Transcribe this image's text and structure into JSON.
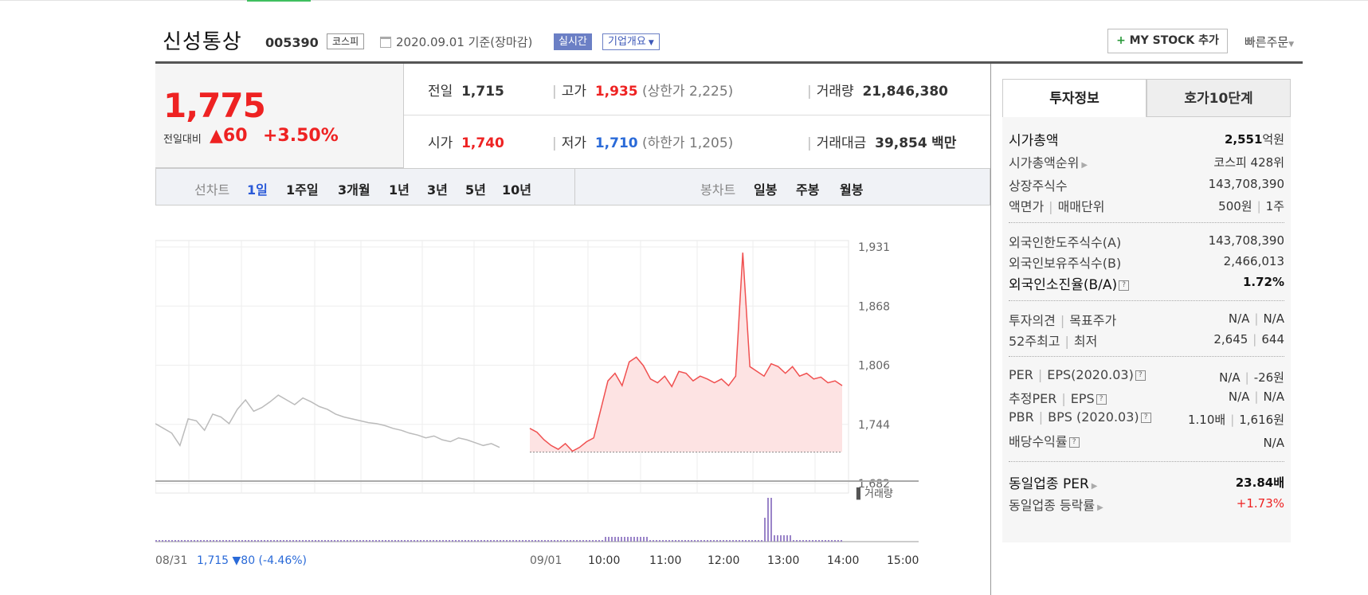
{
  "header": {
    "name": "신성통상",
    "code": "005390",
    "market_badge": "코스피",
    "date": "2020.09.01 기준(장마감)",
    "realtime": "실시간",
    "corp_overview": "기업개요",
    "mystock_plus": "+",
    "mystock_label": "MY STOCK 추가",
    "quick_order": "빠른주문"
  },
  "price": {
    "current": "1,775",
    "diff_label": "전일대비",
    "diff_value": "▲60",
    "diff_pct": "+3.50%"
  },
  "summary": {
    "prev_label": "전일",
    "prev": "1,715",
    "high_label": "고가",
    "high": "1,935",
    "upper_label": "(상한가 2,225)",
    "volume_label": "거래량",
    "volume": "21,846,380",
    "open_label": "시가",
    "open": "1,740",
    "low_label": "저가",
    "low": "1,710",
    "lower_label": "(하한가 1,205)",
    "amount_label": "거래대금",
    "amount": "39,854",
    "amount_unit": "백만"
  },
  "periods": {
    "line_label": "선차트",
    "items": [
      "1일",
      "1주일",
      "3개월",
      "1년",
      "3년",
      "5년",
      "10년"
    ],
    "candle_label": "봉차트",
    "candle_items": [
      "일봉",
      "주봉",
      "월봉"
    ]
  },
  "chart_data": {
    "type": "line",
    "title": "",
    "prev_close": 1715,
    "y_ticks": [
      "1,931",
      "1,868",
      "1,806",
      "1,744",
      "1,682"
    ],
    "ylim": [
      1682,
      1931
    ],
    "x_ticks": [
      "09/01",
      "10:00",
      "11:00",
      "12:00",
      "13:00",
      "14:00",
      "15:00"
    ],
    "prev_day_label": "08/31",
    "prev_day_info": "1,715 ▼80 (-4.46%)",
    "volume_legend": "거래량",
    "series": [
      {
        "values": [
          1745,
          1740,
          1735,
          1722,
          1750,
          1748,
          1738,
          1755,
          1752,
          1745,
          1760,
          1770,
          1758,
          1762,
          1768,
          1775,
          1770,
          1765,
          1772,
          1768,
          1763,
          1760,
          1755,
          1752,
          1750,
          1748,
          1746,
          1745,
          1743,
          1740,
          1738,
          1735,
          1733,
          1730,
          1732,
          1728,
          1726,
          1730,
          1728,
          1725,
          1722,
          1724,
          1720
        ]
      },
      {
        "values": [
          1740,
          1736,
          1728,
          1722,
          1718,
          1724,
          1716,
          1720,
          1726,
          1730,
          1760,
          1790,
          1798,
          1785,
          1810,
          1815,
          1806,
          1792,
          1788,
          1795,
          1784,
          1800,
          1798,
          1790,
          1795,
          1792,
          1788,
          1792,
          1785,
          1795,
          1925,
          1805,
          1800,
          1795,
          1808,
          1805,
          1798,
          1805,
          1795,
          1798,
          1792,
          1794,
          1788,
          1790,
          1785
        ]
      }
    ]
  },
  "side": {
    "tab_info": "투자정보",
    "tab_quote": "호가10단계",
    "market_cap_label": "시가총액",
    "market_cap": "2,551",
    "market_cap_unit": "억원",
    "market_cap_rank_label": "시가총액순위",
    "market_cap_rank": "코스피 428위",
    "listed_shares_label": "상장주식수",
    "listed_shares": "143,708,390",
    "face_label": "액면가",
    "trade_unit_label": "매매단위",
    "face": "500원",
    "trade_unit": "1주",
    "foreign_limit_label": "외국인한도주식수(A)",
    "foreign_limit": "143,708,390",
    "foreign_hold_label": "외국인보유주식수(B)",
    "foreign_hold": "2,466,013",
    "foreign_ratio_label": "외국인소진율(B/A)",
    "foreign_ratio": "1.72%",
    "opinion_label": "투자의견",
    "target_label": "목표주가",
    "opinion": "N/A",
    "target": "N/A",
    "high52_label": "52주최고",
    "low52_label": "최저",
    "high52": "2,645",
    "low52": "644",
    "per_label": "PER",
    "eps_label": "EPS(2020.03)",
    "per": "N/A",
    "eps": "-26원",
    "est_per_label": "추정PER",
    "est_eps_label": "EPS",
    "est_per": "N/A",
    "est_eps": "N/A",
    "pbr_label": "PBR",
    "bps_label": "BPS (2020.03)",
    "pbr": "1.10배",
    "bps": "1,616원",
    "dividend_label": "배당수익률",
    "dividend": "N/A",
    "sector_per_label": "동일업종 PER",
    "sector_per": "23.84배",
    "sector_change_label": "동일업종 등락률",
    "sector_change": "+1.73%"
  }
}
